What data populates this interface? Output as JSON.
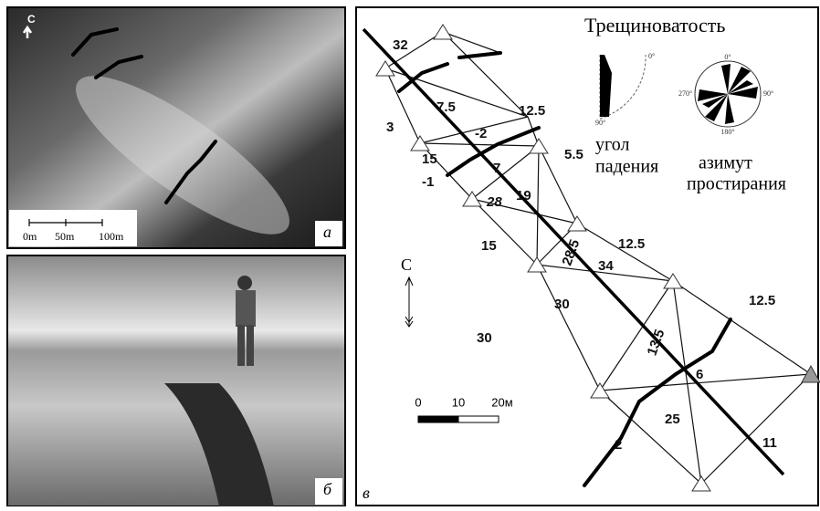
{
  "panel_a": {
    "label": "а",
    "north": "С",
    "scale": [
      "0m",
      "50m",
      "100m"
    ]
  },
  "panel_b": {
    "label": "б"
  },
  "panel_c": {
    "label": "в",
    "title": "Трещиноватость",
    "dip_plot": {
      "ticks": [
        "0°",
        "90°"
      ],
      "caption": [
        "угол",
        "падения"
      ]
    },
    "rose": {
      "ticks": [
        "0°",
        "90°",
        "180°",
        "270°"
      ],
      "caption": [
        "азимут",
        "простирания"
      ]
    },
    "north": "С",
    "scale": [
      "0",
      "10",
      "20м"
    ],
    "edge_labels": [
      "32",
      "3",
      "7.5",
      "12.5",
      "-2",
      "15",
      "-1",
      "7",
      "28",
      "19",
      "5.5",
      "15",
      "12.5",
      "28.5",
      "34",
      "30",
      "30",
      "12.5",
      "13.5",
      "6",
      "25",
      "2",
      "11"
    ]
  }
}
